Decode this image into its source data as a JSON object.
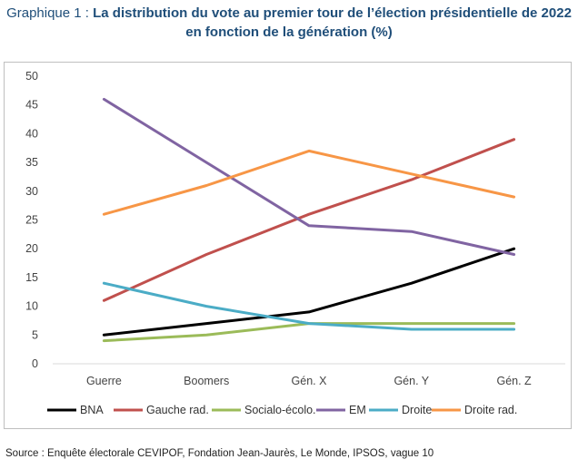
{
  "title_lead": "Graphique 1 : ",
  "title_main": "La distribution du vote au premier tour de l’élection présidentielle de 2022 en fonction de la génération (%)",
  "source": "Source :  Enquête électorale CEVIPOF, Fondation Jean-Jaurès, Le Monde, IPSOS, vague 10",
  "chart_data": {
    "type": "line",
    "categories": [
      "Guerre",
      "Boomers",
      "Gén. X",
      "Gén. Y",
      "Gén. Z"
    ],
    "ylim": [
      0,
      50
    ],
    "yticks": [
      0,
      5,
      10,
      15,
      20,
      25,
      30,
      35,
      40,
      45,
      50
    ],
    "grid": false,
    "legend_position": "bottom",
    "series": [
      {
        "name": "BNA",
        "color": "#000000",
        "values": [
          5,
          7,
          9,
          14,
          20
        ]
      },
      {
        "name": "Gauche rad.",
        "color": "#c0504d",
        "values": [
          11,
          19,
          26,
          32,
          39
        ]
      },
      {
        "name": "Socialo-écolo.",
        "color": "#9bbb59",
        "values": [
          4,
          5,
          7,
          7,
          7
        ]
      },
      {
        "name": "EM",
        "color": "#8064a2",
        "values": [
          46,
          35,
          24,
          23,
          19
        ]
      },
      {
        "name": "Droite",
        "color": "#4bacc6",
        "values": [
          14,
          10,
          7,
          6,
          6
        ]
      },
      {
        "name": "Droite rad.",
        "color": "#f79646",
        "values": [
          26,
          31,
          37,
          33,
          29
        ]
      }
    ]
  }
}
